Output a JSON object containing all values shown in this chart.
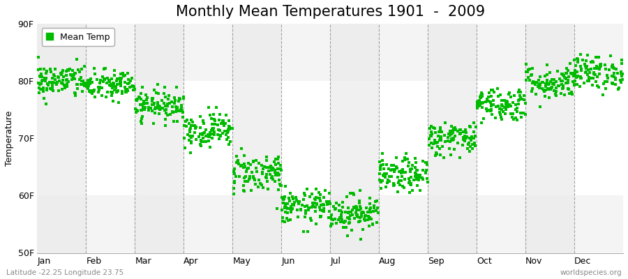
{
  "title": "Monthly Mean Temperatures 1901  -  2009",
  "ylabel": "Temperature",
  "xlabel_bottom_left": "Latitude -22.25 Longitude 23.75",
  "xlabel_bottom_right": "worldspecies.org",
  "ylim": [
    50,
    90
  ],
  "yticks": [
    50,
    60,
    70,
    80,
    90
  ],
  "ytick_labels": [
    "50F",
    "60F",
    "70F",
    "80F",
    "90F"
  ],
  "months": [
    "Jan",
    "Feb",
    "Mar",
    "Apr",
    "May",
    "Jun",
    "Jul",
    "Aug",
    "Sep",
    "Oct",
    "Nov",
    "Dec"
  ],
  "marker_color": "#00BB00",
  "marker_size": 5,
  "background_color": "#FFFFFF",
  "plot_bg_color_light": "#F0F0F0",
  "plot_bg_color_dark": "#E0E0E0",
  "legend_label": "Mean Temp",
  "title_fontsize": 15,
  "axis_fontsize": 9,
  "tick_fontsize": 9,
  "dashed_line_color": "#999999",
  "num_years": 109,
  "mean_temps_by_month": [
    80.0,
    79.2,
    75.8,
    71.5,
    64.0,
    58.0,
    57.0,
    63.5,
    70.0,
    76.0,
    79.8,
    81.5
  ],
  "std_by_month": [
    1.5,
    1.4,
    1.3,
    1.5,
    1.8,
    1.5,
    1.6,
    1.5,
    1.5,
    1.5,
    1.5,
    1.5
  ]
}
